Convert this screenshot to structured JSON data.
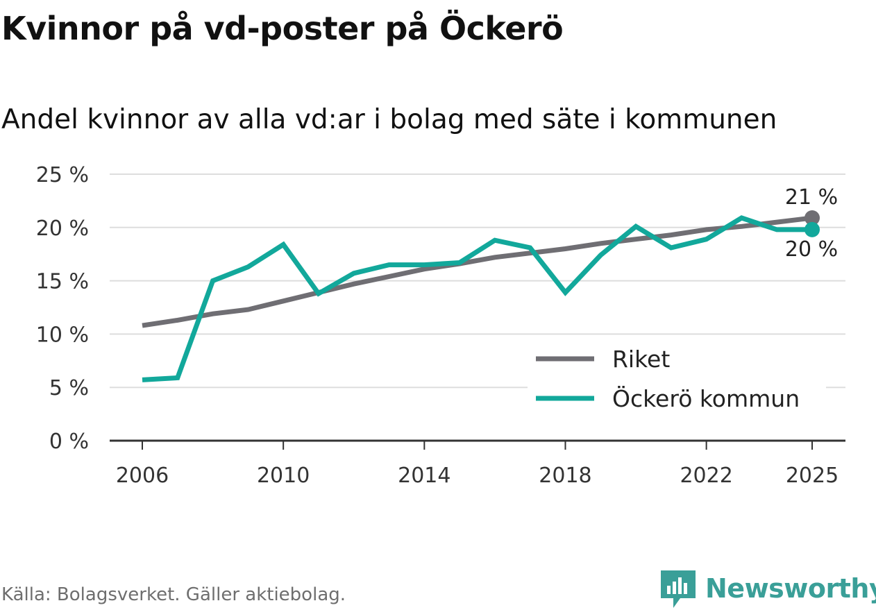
{
  "title": "Kvinnor på vd-poster på Öckerö",
  "subtitle": "Andel kvinnor av alla vd:ar i bolag med säte i kommunen",
  "source": "Källa: Bolagsverket. Gäller aktiebolag.",
  "brand": "Newsworthy",
  "colors": {
    "riket": "#6f6e73",
    "ockero": "#12a89b",
    "grid": "#dddddd",
    "axis": "#333333"
  },
  "chart_data": {
    "type": "line",
    "title": "Kvinnor på vd-poster på Öckerö",
    "subtitle": "Andel kvinnor av alla vd:ar i bolag med säte i kommunen",
    "x": [
      2006,
      2007,
      2008,
      2009,
      2010,
      2011,
      2012,
      2013,
      2014,
      2015,
      2016,
      2017,
      2018,
      2019,
      2020,
      2021,
      2022,
      2023,
      2024,
      2025
    ],
    "xticks": [
      2006,
      2010,
      2014,
      2018,
      2022,
      2025
    ],
    "xtick_labels": [
      "2006",
      "2010",
      "2014",
      "2018",
      "2022",
      "2025"
    ],
    "yticks": [
      0,
      5,
      10,
      15,
      20,
      25
    ],
    "ytick_labels": [
      "0 %",
      "5 %",
      "10 %",
      "15 %",
      "20 %",
      "25 %"
    ],
    "ylim": [
      0,
      25
    ],
    "xlim": [
      2006,
      2025
    ],
    "grid": true,
    "legend_position": "bottom-right",
    "series": [
      {
        "name": "Riket",
        "color": "#6f6e73",
        "values": [
          10.8,
          11.3,
          11.9,
          12.3,
          13.1,
          13.9,
          14.7,
          15.4,
          16.1,
          16.6,
          17.2,
          17.6,
          18.0,
          18.5,
          18.9,
          19.3,
          19.8,
          20.1,
          20.5,
          20.9
        ],
        "end_label": "21 %"
      },
      {
        "name": "Öckerö kommun",
        "color": "#12a89b",
        "values": [
          5.7,
          5.9,
          15.0,
          16.3,
          18.4,
          13.8,
          15.7,
          16.5,
          16.5,
          16.7,
          18.8,
          18.1,
          13.9,
          17.4,
          20.1,
          18.1,
          18.9,
          20.9,
          19.8,
          19.8
        ],
        "end_label": "20 %"
      }
    ]
  }
}
